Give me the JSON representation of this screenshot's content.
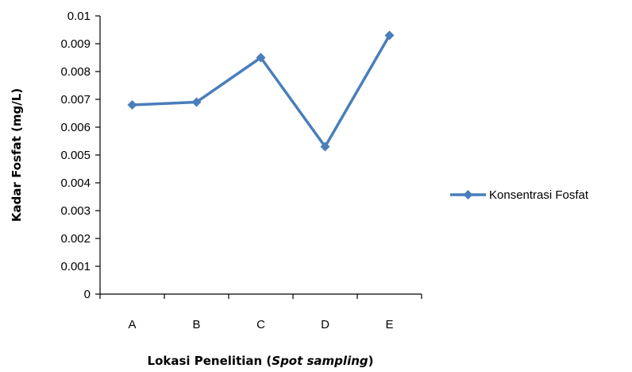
{
  "chart_data": {
    "type": "line",
    "categories": [
      "A",
      "B",
      "C",
      "D",
      "E"
    ],
    "series": [
      {
        "name": "Konsentrasi Fosfat",
        "values": [
          0.0068,
          0.0069,
          0.0085,
          0.0053,
          0.0093
        ]
      }
    ],
    "ylim": [
      0,
      0.01
    ],
    "yticks": [
      "0",
      "0.001",
      "0.002",
      "0.003",
      "0.004",
      "0.005",
      "0.006",
      "0.007",
      "0.008",
      "0.009",
      "0.01"
    ],
    "ylabel": "Kadar Fosfat (mg/L)",
    "xlabel_prefix": "Lokasi Penelitian (",
    "xlabel_italic": "Spot sampling",
    "xlabel_suffix": ")",
    "grid": false,
    "legend_position": "right",
    "series_color": "#4a7ebb"
  }
}
